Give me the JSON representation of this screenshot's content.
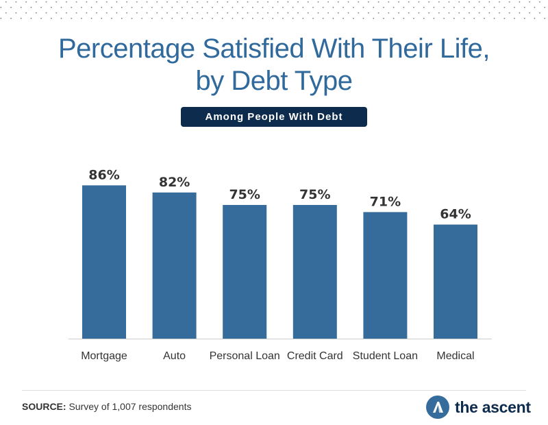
{
  "chart_data": {
    "type": "bar",
    "title": "Percentage Satisfied With Their Life, by Debt Type",
    "subtitle": "Among People With Debt",
    "categories": [
      "Mortgage",
      "Auto",
      "Personal Loan",
      "Credit Card",
      "Student Loan",
      "Medical"
    ],
    "values": [
      86,
      82,
      75,
      75,
      71,
      64
    ],
    "data_labels": [
      "86%",
      "82%",
      "75%",
      "75%",
      "71%",
      "64%"
    ],
    "xlabel": "",
    "ylabel": "",
    "ylim": [
      0,
      100
    ],
    "grid": false,
    "bar_color": "#356c9b"
  },
  "footer": {
    "source_label": "SOURCE:",
    "source_text": " Survey of 1,007 respondents",
    "logo_text": "the ascent"
  },
  "colors": {
    "title": "#306a9c",
    "subtitle_bg": "#0d2b4c"
  }
}
